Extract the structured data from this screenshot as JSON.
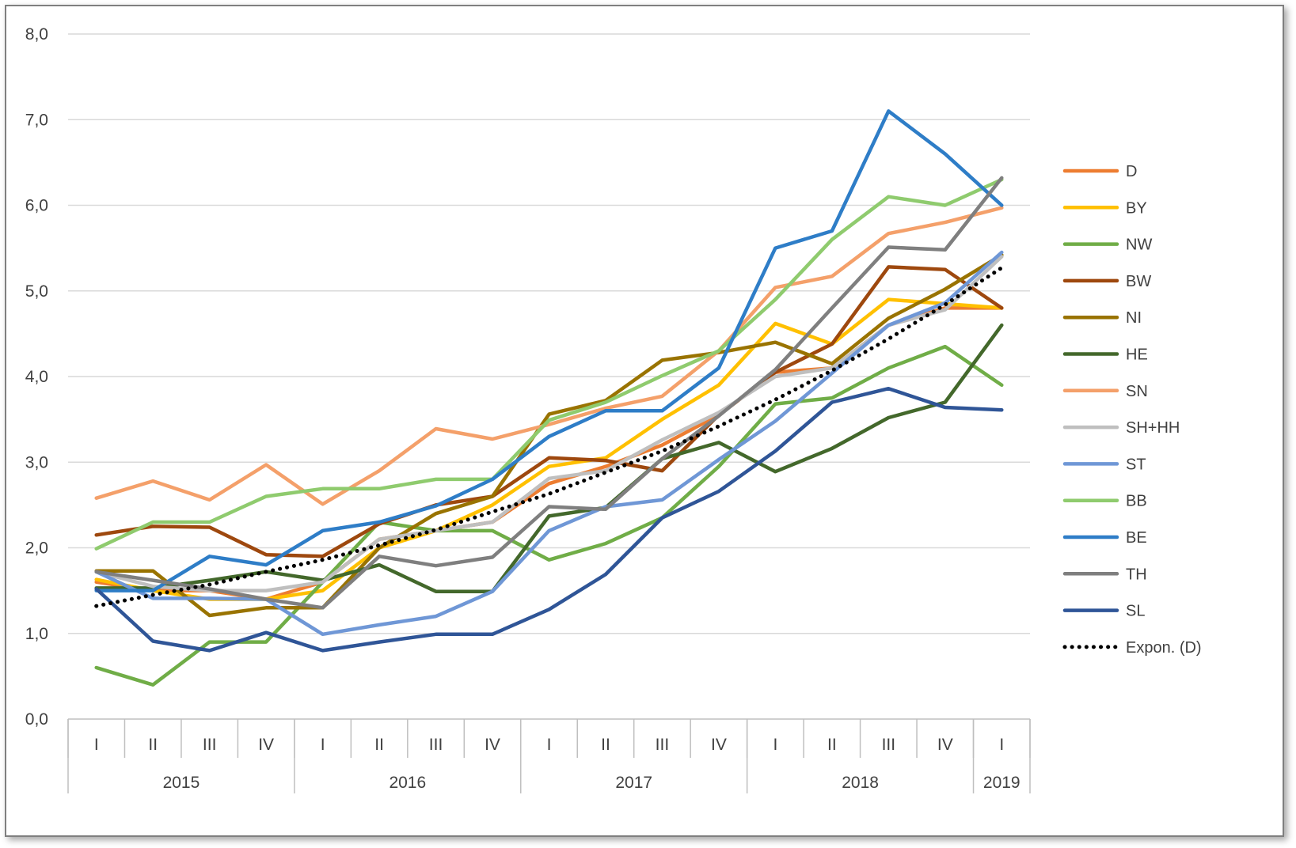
{
  "chart_data": {
    "type": "line",
    "title": "",
    "xlabel": "",
    "ylabel": "",
    "ylim": [
      0,
      8
    ],
    "y_ticks": [
      "0,0",
      "1,0",
      "2,0",
      "3,0",
      "4,0",
      "5,0",
      "6,0",
      "7,0",
      "8,0"
    ],
    "grid": "horizontal",
    "legend_position": "right",
    "categories": [
      "I",
      "II",
      "III",
      "IV",
      "I",
      "II",
      "III",
      "IV",
      "I",
      "II",
      "III",
      "IV",
      "I",
      "II",
      "III",
      "IV",
      "I"
    ],
    "year_groups": [
      {
        "label": "2015",
        "count": 4
      },
      {
        "label": "2016",
        "count": 4
      },
      {
        "label": "2017",
        "count": 4
      },
      {
        "label": "2018",
        "count": 4
      },
      {
        "label": "2019",
        "count": 1
      }
    ],
    "series": [
      {
        "name": "D",
        "color": "#ED7D31",
        "dotted": false,
        "values": [
          1.6,
          1.5,
          1.5,
          1.4,
          1.6,
          2.1,
          2.2,
          2.3,
          2.75,
          2.95,
          3.2,
          3.55,
          4.05,
          4.1,
          4.6,
          4.8,
          4.8
        ]
      },
      {
        "name": "BY",
        "color": "#FFC000",
        "dotted": false,
        "values": [
          1.63,
          1.5,
          1.4,
          1.4,
          1.5,
          2.0,
          2.2,
          2.5,
          2.95,
          3.05,
          3.5,
          3.9,
          4.62,
          4.38,
          4.9,
          4.85,
          4.8
        ]
      },
      {
        "name": "NW",
        "color": "#70AD47",
        "dotted": false,
        "values": [
          0.6,
          0.4,
          0.9,
          0.9,
          1.6,
          2.3,
          2.2,
          2.2,
          1.86,
          2.05,
          2.35,
          2.95,
          3.68,
          3.75,
          4.1,
          4.35,
          3.9
        ]
      },
      {
        "name": "BW",
        "color": "#9E480E",
        "dotted": false,
        "values": [
          2.15,
          2.25,
          2.24,
          1.92,
          1.9,
          2.28,
          2.5,
          2.6,
          3.05,
          3.02,
          2.9,
          3.55,
          4.05,
          4.38,
          5.28,
          5.25,
          4.8
        ]
      },
      {
        "name": "NI",
        "color": "#997300",
        "dotted": false,
        "values": [
          1.73,
          1.73,
          1.21,
          1.3,
          1.3,
          2.0,
          2.4,
          2.6,
          3.56,
          3.72,
          4.19,
          4.28,
          4.4,
          4.15,
          4.68,
          5.02,
          5.42
        ]
      },
      {
        "name": "HE",
        "color": "#43682B",
        "dotted": false,
        "values": [
          1.53,
          1.53,
          1.62,
          1.72,
          1.62,
          1.8,
          1.49,
          1.49,
          2.37,
          2.47,
          3.04,
          3.23,
          2.89,
          3.16,
          3.52,
          3.7,
          4.6
        ]
      },
      {
        "name": "SN",
        "color": "#F4A06A",
        "dotted": false,
        "values": [
          2.58,
          2.78,
          2.56,
          2.97,
          2.51,
          2.9,
          3.39,
          3.27,
          3.44,
          3.63,
          3.77,
          4.3,
          5.04,
          5.17,
          5.67,
          5.8,
          5.97
        ]
      },
      {
        "name": "SH+HH",
        "color": "#BFBFBF",
        "dotted": false,
        "values": [
          1.72,
          1.55,
          1.5,
          1.5,
          1.6,
          2.1,
          2.2,
          2.3,
          2.81,
          2.9,
          3.26,
          3.58,
          4.0,
          4.1,
          4.6,
          4.78,
          5.4
        ]
      },
      {
        "name": "ST",
        "color": "#6F97D6",
        "dotted": false,
        "values": [
          1.72,
          1.41,
          1.41,
          1.4,
          0.99,
          1.1,
          1.2,
          1.49,
          2.2,
          2.48,
          2.56,
          3.03,
          3.48,
          4.04,
          4.6,
          4.86,
          5.45
        ]
      },
      {
        "name": "BB",
        "color": "#8FCB6E",
        "dotted": false,
        "values": [
          1.99,
          2.3,
          2.3,
          2.6,
          2.69,
          2.69,
          2.8,
          2.8,
          3.49,
          3.7,
          4.01,
          4.3,
          4.9,
          5.6,
          6.1,
          6.0,
          6.3
        ]
      },
      {
        "name": "BE",
        "color": "#2E7DC7",
        "dotted": false,
        "values": [
          1.5,
          1.5,
          1.9,
          1.8,
          2.2,
          2.3,
          2.49,
          2.8,
          3.3,
          3.6,
          3.6,
          4.1,
          5.5,
          5.7,
          7.1,
          6.6,
          6.0
        ]
      },
      {
        "name": "TH",
        "color": "#7F7F7F",
        "dotted": false,
        "values": [
          1.72,
          1.62,
          1.52,
          1.4,
          1.3,
          1.9,
          1.79,
          1.89,
          2.48,
          2.45,
          3.04,
          3.54,
          4.08,
          4.8,
          5.51,
          5.48,
          6.32
        ]
      },
      {
        "name": "SL",
        "color": "#2F5597",
        "dotted": false,
        "values": [
          1.52,
          0.91,
          0.8,
          1.01,
          0.8,
          0.9,
          0.99,
          0.99,
          1.28,
          1.69,
          2.35,
          2.66,
          3.13,
          3.7,
          3.86,
          3.64,
          3.61
        ]
      },
      {
        "name": "Expon. (D)",
        "color": "#000000",
        "dotted": true,
        "values": [
          1.32,
          1.45,
          1.57,
          1.72,
          1.86,
          2.03,
          2.21,
          2.42,
          2.63,
          2.88,
          3.13,
          3.42,
          3.73,
          4.07,
          4.44,
          4.84,
          5.27
        ]
      }
    ]
  }
}
